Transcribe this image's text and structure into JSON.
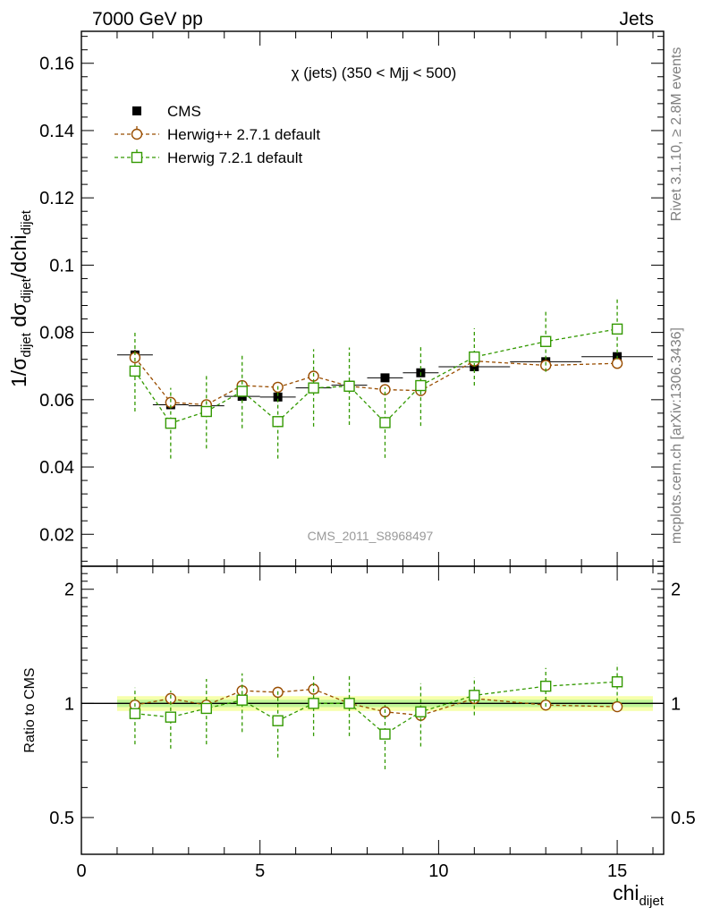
{
  "header": {
    "left": "7000 GeV pp",
    "right": "Jets",
    "side_top": "Rivet 3.1.10, ≥ 2.8M events",
    "side_bottom": "mcplots.cern.ch [arXiv:1306.3436]",
    "analysis_id": "CMS_2011_S8968497"
  },
  "chart_data": [
    {
      "type": "scatter",
      "panel": "main",
      "title": "χ (jets) (350 < Mjj <  500)",
      "ylabel_parts": [
        "1/σ",
        "dijet",
        " dσ",
        "dijet",
        "/dchi",
        "dijet"
      ],
      "xlim": [
        0,
        16.3
      ],
      "ylim": [
        0.0105,
        0.1695
      ],
      "yticks": [
        0.02,
        0.04,
        0.06,
        0.08,
        0.1,
        0.12,
        0.14,
        0.16
      ],
      "ytick_labels": [
        "0.02",
        "0.04",
        "0.06",
        "0.08",
        "0.1",
        "0.12",
        "0.14",
        "0.16"
      ],
      "legend_position": "top-left",
      "series": [
        {
          "name": "CMS",
          "color": "#000000",
          "marker": "filled-square",
          "x": [
            1.5,
            2.5,
            3.5,
            4.5,
            5.5,
            6.5,
            7.5,
            8.5,
            9.5,
            11,
            13,
            15
          ],
          "xerr": [
            0.5,
            0.5,
            0.5,
            0.5,
            0.5,
            0.5,
            0.5,
            0.5,
            0.5,
            1,
            1,
            1
          ],
          "y": [
            0.0733,
            0.0585,
            0.0582,
            0.061,
            0.0608,
            0.0635,
            0.0643,
            0.0665,
            0.068,
            0.0698,
            0.0713,
            0.0728
          ],
          "yerr": [
            0.0015,
            0.0012,
            0.0012,
            0.0012,
            0.0012,
            0.0012,
            0.0012,
            0.0012,
            0.0012,
            0.0012,
            0.0012,
            0.0012
          ]
        },
        {
          "name": "Herwig++ 2.7.1 default",
          "color": "#994d00",
          "marker": "open-circle",
          "x": [
            1.5,
            2.5,
            3.5,
            4.5,
            5.5,
            6.5,
            7.5,
            8.5,
            9.5,
            11,
            13,
            15
          ],
          "y": [
            0.0725,
            0.0592,
            0.0585,
            0.0642,
            0.0637,
            0.067,
            0.064,
            0.063,
            0.0627,
            0.0715,
            0.0702,
            0.0708
          ],
          "yerr": [
            0.002,
            0.0016,
            0.0014,
            0.0016,
            0.0014,
            0.0016,
            0.0014,
            0.0012,
            0.0012,
            0.0014,
            0.0012,
            0.0012
          ]
        },
        {
          "name": "Herwig 7.2.1 default",
          "color": "#339900",
          "marker": "open-square",
          "x": [
            1.5,
            2.5,
            3.5,
            4.5,
            5.5,
            6.5,
            7.5,
            8.5,
            9.5,
            11,
            13,
            15
          ],
          "y": [
            0.0685,
            0.053,
            0.0565,
            0.0625,
            0.0535,
            0.0635,
            0.064,
            0.0532,
            0.0642,
            0.0727,
            0.0773,
            0.081
          ],
          "yerr": [
            0.012,
            0.0105,
            0.011,
            0.011,
            0.011,
            0.0115,
            0.0115,
            0.0105,
            0.012,
            0.0085,
            0.009,
            0.009
          ]
        }
      ]
    },
    {
      "type": "scatter",
      "panel": "ratio",
      "ylabel": "Ratio to CMS",
      "xlabel_parts": [
        "chi",
        "dijet"
      ],
      "xlim": [
        0,
        16.3
      ],
      "ylim": [
        0.4,
        2.3
      ],
      "yscale": "log",
      "yticks": [
        0.5,
        1,
        2
      ],
      "ytick_labels": [
        "0.5",
        "1",
        "2"
      ],
      "xticks": [
        0,
        5,
        10,
        15
      ],
      "xtick_labels": [
        "0",
        "5",
        "10",
        "15"
      ],
      "reference": 1,
      "band_color": "#eeff66",
      "series": [
        {
          "name": "Herwig++ 2.7.1 default",
          "color": "#994d00",
          "marker": "open-circle",
          "x": [
            1.5,
            2.5,
            3.5,
            4.5,
            5.5,
            6.5,
            7.5,
            8.5,
            9.5,
            11,
            13,
            15
          ],
          "y": [
            0.99,
            1.03,
            0.99,
            1.08,
            1.07,
            1.09,
            1.0,
            0.95,
            0.93,
            1.03,
            0.99,
            0.98
          ],
          "yerr": [
            0.035,
            0.03,
            0.025,
            0.03,
            0.028,
            0.03,
            0.025,
            0.022,
            0.022,
            0.022,
            0.02,
            0.02
          ]
        },
        {
          "name": "Herwig 7.2.1 default",
          "color": "#339900",
          "marker": "open-square",
          "x": [
            1.5,
            2.5,
            3.5,
            4.5,
            5.5,
            6.5,
            7.5,
            8.5,
            9.5,
            11,
            13,
            15
          ],
          "y": [
            0.94,
            0.92,
            0.97,
            1.02,
            0.9,
            1.0,
            1.0,
            0.83,
            0.95,
            1.05,
            1.11,
            1.14
          ],
          "yerr": [
            0.16,
            0.16,
            0.19,
            0.18,
            0.18,
            0.18,
            0.18,
            0.16,
            0.18,
            0.12,
            0.13,
            0.13
          ]
        }
      ]
    }
  ]
}
